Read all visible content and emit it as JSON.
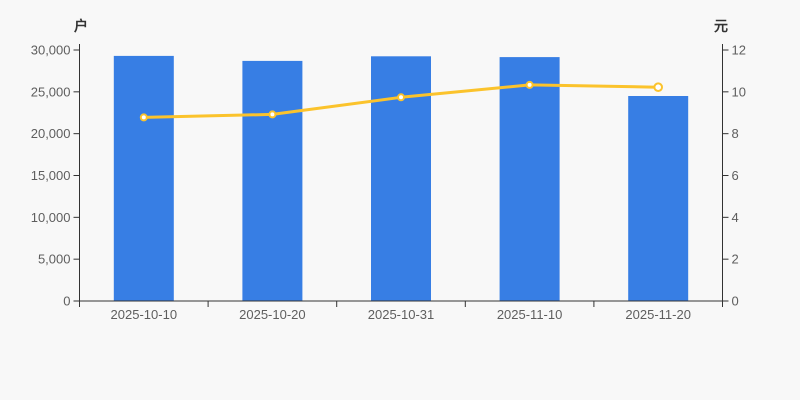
{
  "chart_data": {
    "type": "bar",
    "title": "",
    "categories": [
      "2025-10-10",
      "2025-10-20",
      "2025-10-31",
      "2025-11-10",
      "2025-11-20"
    ],
    "series": [
      {
        "id": "holders-bars",
        "type": "bar",
        "axis": "left",
        "values": [
          29300,
          28700,
          29250,
          29150,
          24500
        ],
        "color": "#377EE4"
      },
      {
        "id": "price-line",
        "type": "line",
        "axis": "right",
        "values": [
          8.78,
          8.92,
          9.74,
          10.33,
          10.22
        ],
        "color": "#FBC32C",
        "marker_fill": "#FFFFFF",
        "last_point_hollow": true
      }
    ],
    "left_axis": {
      "label": "户",
      "min": 0,
      "max": 30000,
      "ticks": [
        "30,000",
        "25,000",
        "20,000",
        "15,000",
        "10,000",
        "5,000",
        "0"
      ]
    },
    "right_axis": {
      "label": "元",
      "min": 0,
      "max": 12,
      "ticks": [
        "12",
        "10",
        "8",
        "6",
        "4",
        "2",
        "0"
      ]
    },
    "x_axis": {
      "labels": [
        "2025-10-10",
        "2025-10-20",
        "2025-10-31",
        "2025-11-10",
        "2025-11-20"
      ]
    },
    "grid": false,
    "legend": "none",
    "colors": {
      "background": "#F8F8F8",
      "axis": "#333333",
      "tick_text": "#5E5E5E",
      "unit_text": "#333333"
    }
  }
}
